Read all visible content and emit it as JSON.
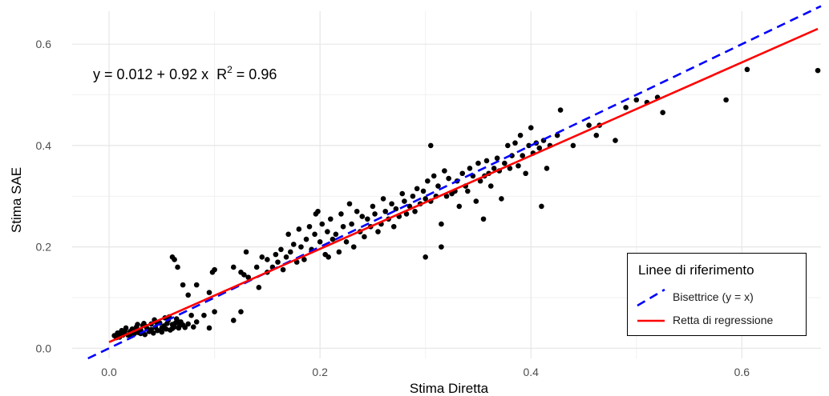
{
  "chart_data": {
    "type": "scatter",
    "xlabel": "Stima Diretta",
    "ylabel": "Stima SAE",
    "xlim": [
      -0.035,
      0.675
    ],
    "ylim": [
      -0.02,
      0.665
    ],
    "x_ticks": [
      "0.0",
      "0.2",
      "0.4",
      "0.6"
    ],
    "y_ticks": [
      "0.0",
      "0.2",
      "0.4",
      "0.6"
    ],
    "grid": true,
    "equation": {
      "prefix": "y = 0.012 + 0.92 x",
      "r2_label": "R",
      "r2_exp": "2",
      "r2_value": " = 0.96"
    },
    "reference_lines": {
      "bisector": {
        "intercept": 0,
        "slope": 1,
        "color": "#0000ff",
        "style": "dashed"
      },
      "regression": {
        "intercept": 0.012,
        "slope": 0.92,
        "color": "#ff0000",
        "style": "solid"
      }
    },
    "legend": {
      "title": "Linee di riferimento",
      "position": "bottom-right",
      "items": [
        {
          "label": "Bisettrice (y = x)",
          "color": "#0000ff",
          "style": "dashed"
        },
        {
          "label": "Retta di regressione",
          "color": "#ff0000",
          "style": "solid"
        }
      ]
    },
    "points": [
      [
        0.005,
        0.025
      ],
      [
        0.008,
        0.03
      ],
      [
        0.01,
        0.022
      ],
      [
        0.012,
        0.035
      ],
      [
        0.014,
        0.028
      ],
      [
        0.016,
        0.04
      ],
      [
        0.018,
        0.026
      ],
      [
        0.02,
        0.033
      ],
      [
        0.022,
        0.038
      ],
      [
        0.024,
        0.029
      ],
      [
        0.026,
        0.042
      ],
      [
        0.028,
        0.031
      ],
      [
        0.03,
        0.036
      ],
      [
        0.032,
        0.045
      ],
      [
        0.034,
        0.027
      ],
      [
        0.036,
        0.039
      ],
      [
        0.038,
        0.033
      ],
      [
        0.04,
        0.048
      ],
      [
        0.042,
        0.03
      ],
      [
        0.044,
        0.041
      ],
      [
        0.046,
        0.035
      ],
      [
        0.048,
        0.05
      ],
      [
        0.05,
        0.032
      ],
      [
        0.052,
        0.044
      ],
      [
        0.054,
        0.038
      ],
      [
        0.056,
        0.055
      ],
      [
        0.058,
        0.036
      ],
      [
        0.06,
        0.047
      ],
      [
        0.062,
        0.042
      ],
      [
        0.064,
        0.058
      ],
      [
        0.066,
        0.04
      ],
      [
        0.068,
        0.052
      ],
      [
        0.07,
        0.046
      ],
      [
        0.01,
        0.03
      ],
      [
        0.015,
        0.034
      ],
      [
        0.02,
        0.027
      ],
      [
        0.025,
        0.037
      ],
      [
        0.03,
        0.029
      ],
      [
        0.035,
        0.043
      ],
      [
        0.04,
        0.037
      ],
      [
        0.045,
        0.051
      ],
      [
        0.05,
        0.04
      ],
      [
        0.055,
        0.049
      ],
      [
        0.06,
        0.039
      ],
      [
        0.065,
        0.053
      ],
      [
        0.007,
        0.021
      ],
      [
        0.013,
        0.026
      ],
      [
        0.027,
        0.047
      ],
      [
        0.033,
        0.049
      ],
      [
        0.043,
        0.056
      ],
      [
        0.053,
        0.06
      ],
      [
        0.057,
        0.062
      ],
      [
        0.063,
        0.05
      ],
      [
        0.067,
        0.045
      ],
      [
        0.072,
        0.041
      ],
      [
        0.075,
        0.048
      ],
      [
        0.078,
        0.065
      ],
      [
        0.08,
        0.042
      ],
      [
        0.083,
        0.052
      ],
      [
        0.06,
        0.18
      ],
      [
        0.062,
        0.175
      ],
      [
        0.065,
        0.16
      ],
      [
        0.07,
        0.125
      ],
      [
        0.075,
        0.105
      ],
      [
        0.083,
        0.125
      ],
      [
        0.09,
        0.065
      ],
      [
        0.095,
        0.11
      ],
      [
        0.098,
        0.15
      ],
      [
        0.1,
        0.155
      ],
      [
        0.095,
        0.04
      ],
      [
        0.1,
        0.072
      ],
      [
        0.118,
        0.055
      ],
      [
        0.125,
        0.072
      ],
      [
        0.118,
        0.16
      ],
      [
        0.125,
        0.15
      ],
      [
        0.128,
        0.145
      ],
      [
        0.132,
        0.14
      ],
      [
        0.13,
        0.19
      ],
      [
        0.14,
        0.16
      ],
      [
        0.142,
        0.12
      ],
      [
        0.145,
        0.18
      ],
      [
        0.15,
        0.175
      ],
      [
        0.15,
        0.15
      ],
      [
        0.155,
        0.16
      ],
      [
        0.158,
        0.185
      ],
      [
        0.16,
        0.17
      ],
      [
        0.163,
        0.195
      ],
      [
        0.165,
        0.155
      ],
      [
        0.168,
        0.18
      ],
      [
        0.17,
        0.225
      ],
      [
        0.172,
        0.19
      ],
      [
        0.175,
        0.205
      ],
      [
        0.178,
        0.17
      ],
      [
        0.18,
        0.235
      ],
      [
        0.182,
        0.2
      ],
      [
        0.185,
        0.175
      ],
      [
        0.187,
        0.215
      ],
      [
        0.19,
        0.24
      ],
      [
        0.192,
        0.195
      ],
      [
        0.195,
        0.225
      ],
      [
        0.196,
        0.265
      ],
      [
        0.198,
        0.27
      ],
      [
        0.2,
        0.21
      ],
      [
        0.202,
        0.245
      ],
      [
        0.205,
        0.185
      ],
      [
        0.207,
        0.23
      ],
      [
        0.208,
        0.18
      ],
      [
        0.21,
        0.255
      ],
      [
        0.212,
        0.215
      ],
      [
        0.215,
        0.225
      ],
      [
        0.218,
        0.19
      ],
      [
        0.22,
        0.265
      ],
      [
        0.222,
        0.24
      ],
      [
        0.225,
        0.21
      ],
      [
        0.228,
        0.285
      ],
      [
        0.23,
        0.245
      ],
      [
        0.232,
        0.2
      ],
      [
        0.235,
        0.27
      ],
      [
        0.238,
        0.23
      ],
      [
        0.24,
        0.26
      ],
      [
        0.242,
        0.22
      ],
      [
        0.245,
        0.255
      ],
      [
        0.248,
        0.24
      ],
      [
        0.25,
        0.28
      ],
      [
        0.252,
        0.265
      ],
      [
        0.255,
        0.23
      ],
      [
        0.258,
        0.245
      ],
      [
        0.26,
        0.295
      ],
      [
        0.262,
        0.27
      ],
      [
        0.265,
        0.255
      ],
      [
        0.268,
        0.285
      ],
      [
        0.27,
        0.24
      ],
      [
        0.272,
        0.275
      ],
      [
        0.275,
        0.26
      ],
      [
        0.278,
        0.305
      ],
      [
        0.28,
        0.29
      ],
      [
        0.282,
        0.265
      ],
      [
        0.285,
        0.28
      ],
      [
        0.288,
        0.3
      ],
      [
        0.29,
        0.27
      ],
      [
        0.292,
        0.315
      ],
      [
        0.295,
        0.285
      ],
      [
        0.298,
        0.31
      ],
      [
        0.3,
        0.295
      ],
      [
        0.302,
        0.33
      ],
      [
        0.305,
        0.29
      ],
      [
        0.308,
        0.34
      ],
      [
        0.31,
        0.3
      ],
      [
        0.312,
        0.32
      ],
      [
        0.315,
        0.245
      ],
      [
        0.318,
        0.35
      ],
      [
        0.32,
        0.3
      ],
      [
        0.322,
        0.335
      ],
      [
        0.325,
        0.305
      ],
      [
        0.328,
        0.31
      ],
      [
        0.33,
        0.33
      ],
      [
        0.332,
        0.28
      ],
      [
        0.335,
        0.345
      ],
      [
        0.338,
        0.32
      ],
      [
        0.34,
        0.31
      ],
      [
        0.342,
        0.355
      ],
      [
        0.345,
        0.34
      ],
      [
        0.348,
        0.29
      ],
      [
        0.35,
        0.365
      ],
      [
        0.352,
        0.33
      ],
      [
        0.355,
        0.255
      ],
      [
        0.356,
        0.34
      ],
      [
        0.358,
        0.37
      ],
      [
        0.36,
        0.345
      ],
      [
        0.362,
        0.32
      ],
      [
        0.365,
        0.355
      ],
      [
        0.368,
        0.375
      ],
      [
        0.37,
        0.35
      ],
      [
        0.372,
        0.295
      ],
      [
        0.375,
        0.365
      ],
      [
        0.378,
        0.4
      ],
      [
        0.38,
        0.355
      ],
      [
        0.382,
        0.38
      ],
      [
        0.385,
        0.405
      ],
      [
        0.388,
        0.36
      ],
      [
        0.39,
        0.42
      ],
      [
        0.392,
        0.38
      ],
      [
        0.395,
        0.345
      ],
      [
        0.398,
        0.4
      ],
      [
        0.4,
        0.435
      ],
      [
        0.402,
        0.385
      ],
      [
        0.405,
        0.405
      ],
      [
        0.408,
        0.395
      ],
      [
        0.41,
        0.28
      ],
      [
        0.412,
        0.41
      ],
      [
        0.415,
        0.355
      ],
      [
        0.418,
        0.4
      ],
      [
        0.305,
        0.4
      ],
      [
        0.3,
        0.18
      ],
      [
        0.315,
        0.2
      ],
      [
        0.425,
        0.42
      ],
      [
        0.428,
        0.47
      ],
      [
        0.44,
        0.4
      ],
      [
        0.455,
        0.44
      ],
      [
        0.462,
        0.42
      ],
      [
        0.465,
        0.44
      ],
      [
        0.48,
        0.41
      ],
      [
        0.49,
        0.475
      ],
      [
        0.5,
        0.49
      ],
      [
        0.51,
        0.485
      ],
      [
        0.52,
        0.495
      ],
      [
        0.525,
        0.465
      ],
      [
        0.585,
        0.49
      ],
      [
        0.605,
        0.55
      ],
      [
        0.672,
        0.548
      ]
    ]
  }
}
